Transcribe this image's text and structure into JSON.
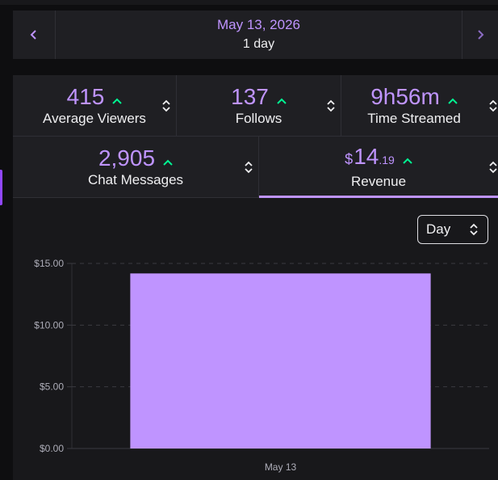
{
  "date_nav": {
    "date": "May 13, 2026",
    "range": "1 day",
    "prev_icon": "chevron-left-icon",
    "next_icon": "chevron-right-icon"
  },
  "stats": [
    {
      "value": "415",
      "label": "Average Viewers"
    },
    {
      "value": "137",
      "label": "Follows"
    },
    {
      "value": "9h56m",
      "label": "Time Streamed"
    },
    {
      "value": "2,905",
      "label": "Chat Messages"
    },
    {
      "currency": "$",
      "value": "14",
      "decimal": ".19",
      "label": "Revenue",
      "active": true
    }
  ],
  "period_select": {
    "value": "Day"
  },
  "colors": {
    "accent": "#bf94ff",
    "trend_up": "#00f593",
    "bar": "#bf94ff"
  },
  "chart_data": {
    "type": "bar",
    "categories": [
      "May 13"
    ],
    "series": [
      {
        "values": [
          14.19
        ]
      }
    ],
    "yticks": [
      "$0.00",
      "$5.00",
      "$10.00",
      "$15.00"
    ],
    "ytick_values": [
      0,
      5,
      10,
      15
    ],
    "ylim": [
      0,
      15
    ],
    "grid": true,
    "title": "",
    "xlabel": "",
    "ylabel": ""
  }
}
